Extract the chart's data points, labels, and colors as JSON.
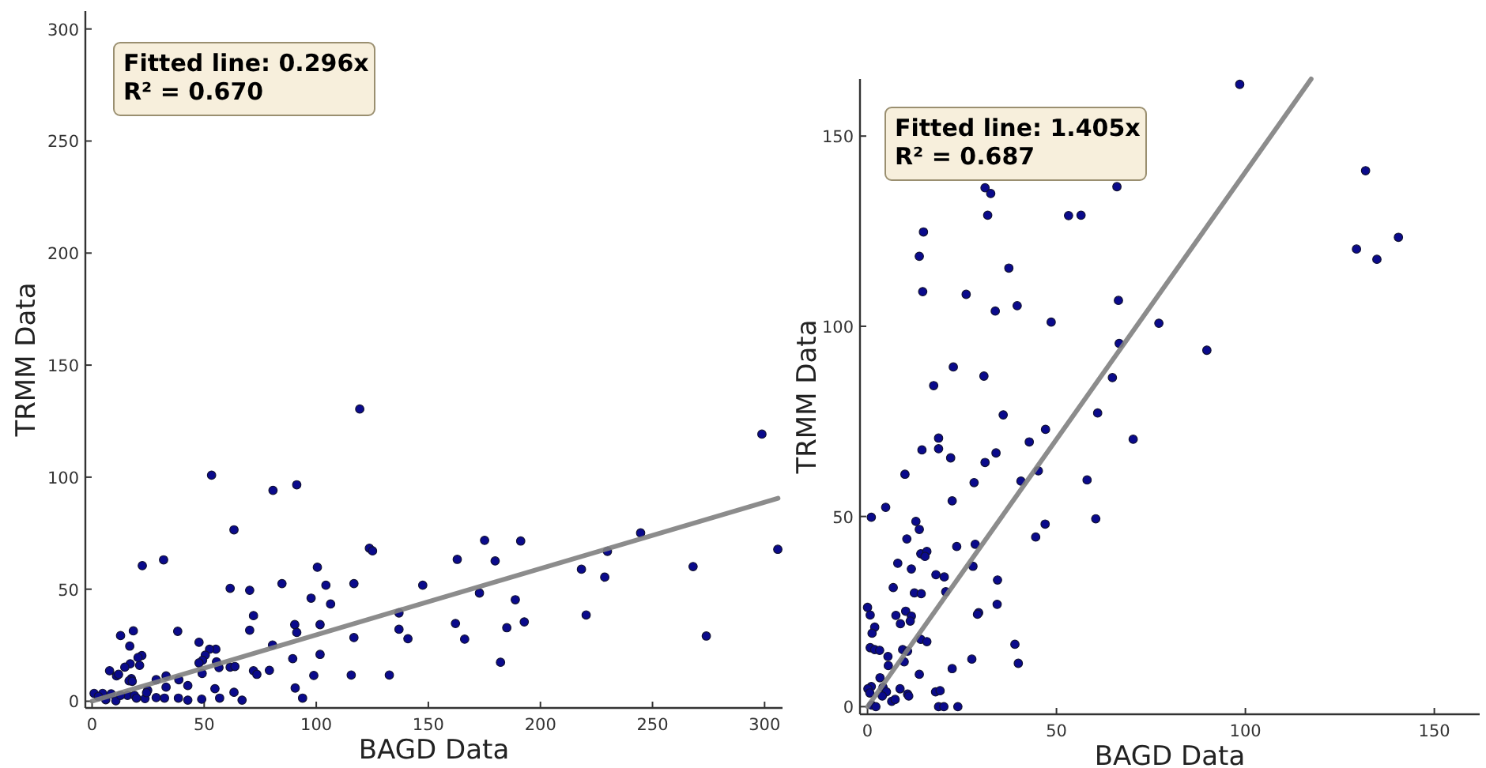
{
  "chart_data": [
    {
      "type": "scatter",
      "xlabel": "BAGD Data",
      "ylabel": "TRMM Data",
      "xlim": [
        -3,
        308
      ],
      "ylim": [
        -3,
        308
      ],
      "xticks": [
        0,
        50,
        100,
        150,
        200,
        250,
        300
      ],
      "yticks": [
        0,
        50,
        100,
        150,
        200,
        250,
        300
      ],
      "annotations": [
        "Fitted line: 0.296x",
        "R² = 0.670"
      ],
      "series": [
        {
          "type": "scatter",
          "color": "#0a0a8c",
          "marker": "circle",
          "x": [
            119.4,
            298.8,
            53.3,
            80.7,
            91.3,
            63.3,
            22.4,
            31.9,
            123.7,
            125.1,
            162.9,
            175.1,
            179.8,
            191.2,
            244.7,
            305.9,
            268.1,
            218.3,
            229.9,
            228.7,
            100.5,
            61.6,
            70.3,
            84.7,
            104.3,
            116.8,
            147.5,
            172.8,
            97.7,
            106.4,
            188.8,
            72.0,
            136.9,
            220.4,
            90.4,
            91.3,
            101.7,
            162.1,
            70.3,
            38.2,
            136.9,
            192.8,
            185.0,
            116.8,
            140.9,
            166.2,
            274.0,
            80.5,
            47.7,
            101.7,
            89.5,
            182.2,
            79.1,
            72.0,
            73.5,
            98.9,
            115.6,
            132.6,
            90.6,
            93.9,
            63.3,
            66.9,
            56.6,
            55.5,
            55.2,
            52.4,
            50.5,
            49.3,
            47.7,
            49.1,
            61.6,
            63.7,
            54.8,
            56.9,
            48.9,
            42.7,
            42.7,
            38.7,
            38.5,
            33.0,
            33.0,
            32.3,
            28.6,
            28.6,
            24.8,
            23.6,
            24.3,
            22.2,
            20.5,
            21.2,
            18.4,
            12.7,
            16.8,
            17.0,
            14.6,
            10.9,
            7.8,
            11.8,
            17.5,
            16.5,
            17.9,
            15.8,
            18.9,
            19.8,
            0.9,
            4.7,
            6.1,
            8.5,
            10.6,
            2.8,
            12.7
          ],
          "values": [
            130.4,
            119.2,
            100.9,
            94.1,
            96.6,
            76.5,
            60.5,
            63.1,
            68.3,
            67.1,
            63.3,
            71.8,
            62.6,
            71.5,
            75.1,
            67.8,
            60.1,
            58.9,
            66.9,
            55.4,
            59.8,
            50.4,
            49.5,
            52.5,
            51.8,
            52.5,
            51.8,
            48.3,
            46.0,
            43.4,
            45.3,
            38.2,
            39.4,
            38.5,
            34.2,
            30.7,
            34.2,
            34.7,
            31.7,
            31.2,
            32.1,
            35.4,
            32.8,
            28.4,
            27.9,
            27.7,
            29.1,
            25.1,
            26.3,
            20.9,
            19.0,
            17.4,
            13.8,
            13.6,
            12.0,
            11.5,
            11.7,
            11.7,
            5.9,
            1.4,
            4.0,
            0.5,
            15.0,
            17.6,
            23.2,
            23.2,
            20.6,
            18.3,
            17.1,
            12.4,
            15.2,
            15.5,
            5.6,
            1.4,
            0.9,
            7.0,
            0.5,
            9.6,
            1.4,
            11.3,
            6.3,
            1.4,
            9.6,
            1.6,
            4.9,
            1.2,
            3.8,
            20.4,
            19.5,
            16.0,
            31.4,
            29.3,
            24.6,
            16.7,
            15.2,
            11.3,
            13.6,
            12.0,
            10.1,
            9.1,
            8.9,
            2.6,
            2.6,
            1.4,
            3.5,
            3.5,
            0.7,
            3.3,
            0.2,
            2.1,
            2.6
          ]
        },
        {
          "type": "line",
          "color": "#7f7f7f",
          "line_style": "solid",
          "marker": "none",
          "x": [
            0,
            306
          ],
          "values": [
            0,
            90.6
          ]
        }
      ]
    },
    {
      "type": "scatter",
      "xlabel": "BAGD Data",
      "ylabel": "TRMM Data",
      "xlim": [
        -2,
        162
      ],
      "ylim": [
        -2,
        165
      ],
      "xticks": [
        0,
        50,
        100,
        150
      ],
      "yticks": [
        0,
        50,
        100,
        150
      ],
      "annotations": [
        "Fitted line: 1.405x",
        "R² = 0.687"
      ],
      "series": [
        {
          "type": "scatter",
          "color": "#0a0a8c",
          "marker": "circle",
          "x": [
            98.5,
            131.8,
            140.5,
            129.4,
            134.8,
            66.0,
            31.1,
            32.6,
            31.8,
            53.2,
            56.5,
            14.8,
            13.7,
            37.4,
            14.6,
            26.1,
            66.4,
            39.6,
            33.8,
            48.6,
            77.1,
            66.6,
            89.8,
            22.7,
            30.8,
            64.8,
            17.5,
            60.9,
            35.9,
            47.1,
            70.3,
            18.8,
            18.8,
            14.4,
            42.8,
            34.0,
            22.0,
            31.1,
            45.2,
            9.9,
            28.2,
            40.6,
            58.1,
            22.4,
            4.8,
            1.0,
            60.4,
            12.8,
            13.7,
            47.0,
            44.5,
            10.4,
            23.6,
            28.5,
            14.1,
            15.7,
            15.2,
            8.0,
            27.9,
            11.6,
            18.1,
            20.3,
            6.8,
            12.4,
            14.2,
            20.7,
            34.4,
            34.3,
            29.4,
            29.1,
            0,
            0.7,
            7.5,
            10.1,
            11.6,
            8.7,
            11.3,
            1.9,
            1.2,
            0.7,
            1.9,
            3.2,
            9.3,
            10.6,
            14.1,
            15.7,
            5.4,
            9.7,
            5.5,
            39.0,
            39.9,
            27.6,
            22.4,
            13.7,
            3.3,
            1.0,
            0.1,
            0.6,
            4.1,
            5.0,
            3.9,
            6.4,
            7.3,
            8.6,
            10.6,
            10.9,
            1.1,
            2.2,
            18.0,
            19.2,
            18.8,
            20.2,
            23.9
          ],
          "values": [
            163.6,
            140.9,
            123.4,
            120.3,
            117.6,
            136.7,
            136.4,
            134.9,
            129.2,
            129.1,
            129.2,
            124.8,
            118.4,
            115.3,
            109.1,
            108.4,
            106.8,
            105.4,
            104.0,
            101.1,
            100.8,
            95.5,
            93.7,
            89.3,
            86.9,
            86.5,
            84.4,
            77.2,
            76.7,
            72.9,
            70.3,
            70.6,
            67.8,
            67.5,
            69.6,
            66.7,
            65.4,
            64.2,
            62.0,
            61.1,
            58.9,
            59.3,
            59.6,
            54.1,
            52.4,
            49.8,
            49.4,
            48.7,
            46.6,
            48.0,
            44.6,
            44.1,
            42.1,
            42.7,
            40.2,
            40.8,
            39.5,
            37.7,
            36.9,
            36.2,
            34.7,
            34.1,
            31.3,
            29.9,
            29.7,
            30.2,
            33.3,
            26.9,
            24.7,
            24.3,
            26.1,
            24.1,
            24.0,
            25.1,
            23.8,
            21.8,
            22.5,
            20.9,
            19.3,
            15.5,
            15.0,
            14.8,
            15.0,
            14.6,
            17.7,
            17.1,
            13.2,
            11.8,
            10.8,
            16.4,
            11.4,
            12.5,
            10.0,
            8.5,
            7.6,
            5.3,
            4.7,
            3.6,
            5.1,
            3.9,
            2.8,
            1.4,
            1.9,
            4.7,
            3.3,
            2.8,
            0.4,
            0,
            3.9,
            4.2,
            0,
            0,
            0
          ]
        },
        {
          "type": "line",
          "color": "#7f7f7f",
          "line_style": "solid",
          "marker": "none",
          "x": [
            0,
            117.4
          ],
          "values": [
            0,
            165
          ]
        }
      ]
    }
  ]
}
